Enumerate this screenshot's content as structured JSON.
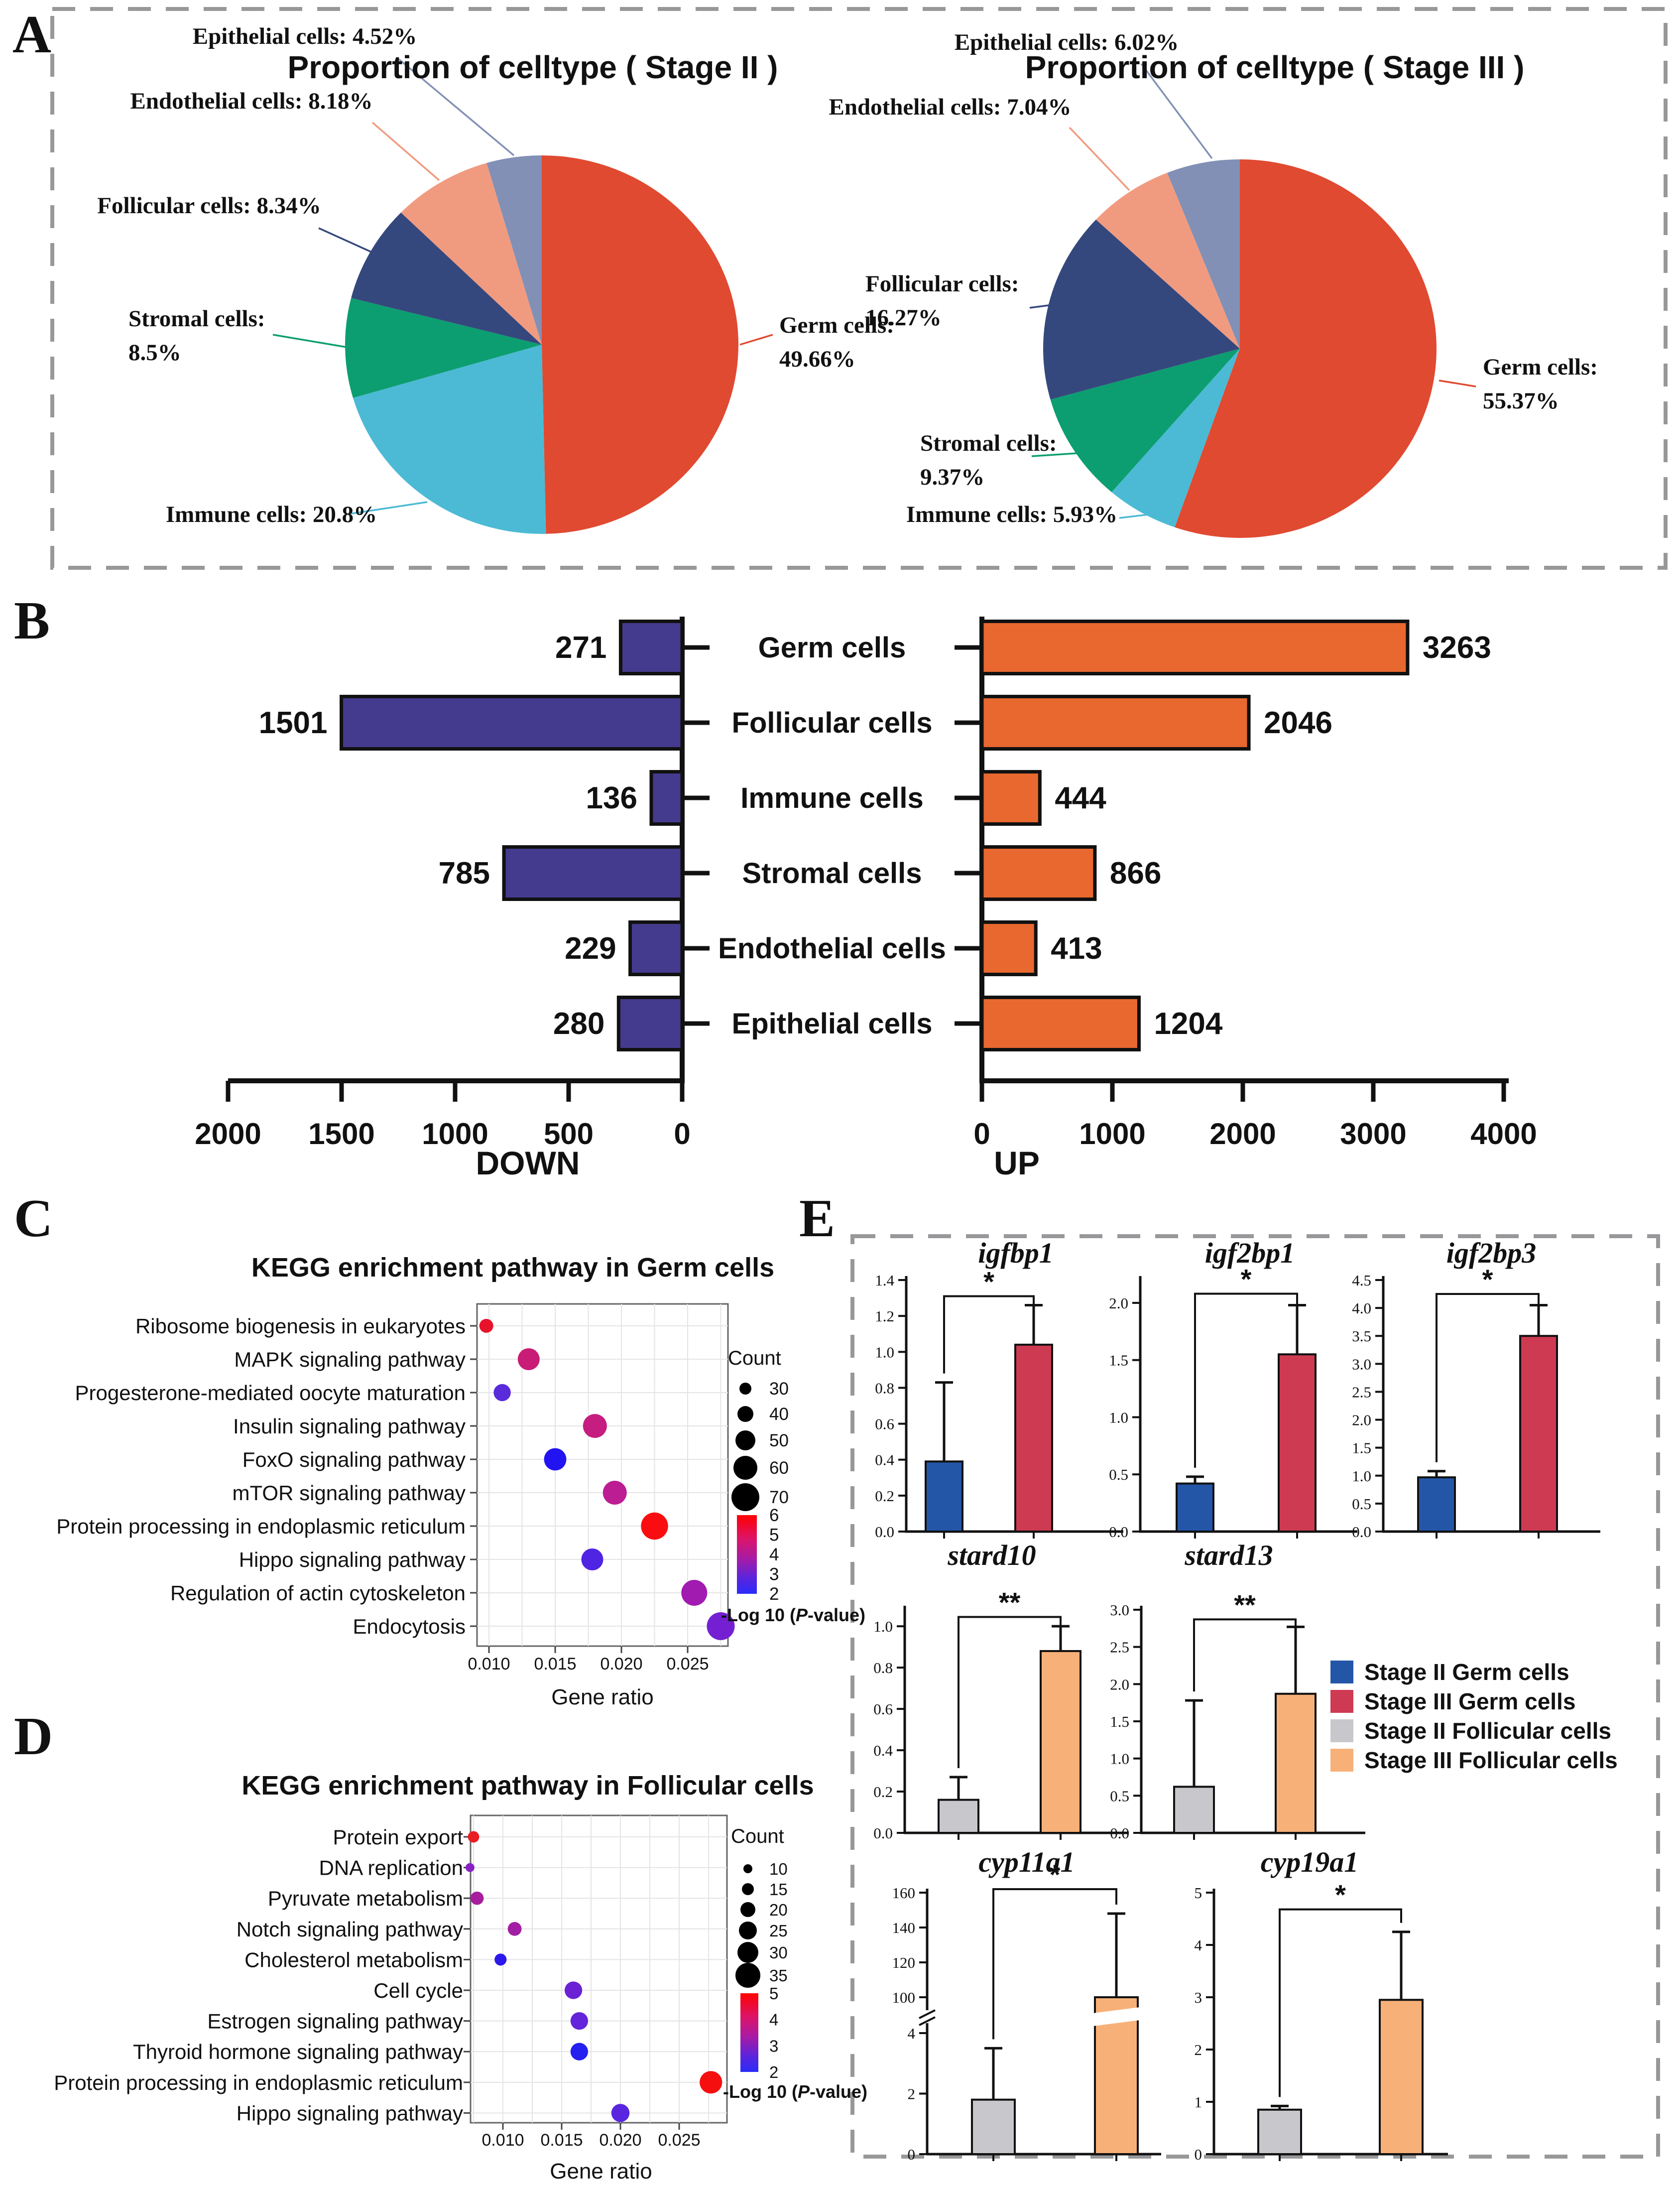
{
  "figure": {
    "panels": {
      "a": "A",
      "b": "B",
      "c": "C",
      "d": "D",
      "e": "E"
    }
  },
  "chart_data": [
    {
      "id": "celltype_stage2",
      "type": "pie",
      "title": "Proportion of celltype ( Stage II )",
      "slices": [
        {
          "label": "Germ cells",
          "value": 49.66,
          "color": "#E04A31"
        },
        {
          "label": "Immune cells",
          "value": 20.8,
          "color": "#4CBAD5"
        },
        {
          "label": "Stromal cells",
          "value": 8.5,
          "color": "#0C9E70"
        },
        {
          "label": "Follicular cells",
          "value": 8.34,
          "color": "#35487D"
        },
        {
          "label": "Endothelial cells",
          "value": 8.18,
          "color": "#F09B80"
        },
        {
          "label": "Epithelial cells",
          "value": 4.52,
          "color": "#8290B6"
        }
      ]
    },
    {
      "id": "celltype_stage3",
      "type": "pie",
      "title": "Proportion of celltype ( Stage III )",
      "slices": [
        {
          "label": "Germ cells",
          "value": 55.37,
          "color": "#E04A31"
        },
        {
          "label": "Immune cells",
          "value": 5.93,
          "color": "#4CBAD5"
        },
        {
          "label": "Stromal cells",
          "value": 9.37,
          "color": "#0C9E70"
        },
        {
          "label": "Follicular cells",
          "value": 16.27,
          "color": "#35487D"
        },
        {
          "label": "Endothelial cells",
          "value": 7.04,
          "color": "#F09B80"
        },
        {
          "label": "Epithelial cells",
          "value": 6.02,
          "color": "#8290B6"
        }
      ]
    },
    {
      "id": "deg_down",
      "type": "bar",
      "orientation": "horizontal-left",
      "axis_label": "DOWN",
      "color": "#443B8E",
      "categories": [
        "Germ cells",
        "Follicular cells",
        "Immune cells",
        "Stromal cells",
        "Endothelial cells",
        "Epithelial cells"
      ],
      "values": [
        271,
        1501,
        136,
        785,
        229,
        280
      ],
      "xticks": [
        2000,
        1500,
        1000,
        500,
        0
      ],
      "xlim": [
        0,
        2000
      ]
    },
    {
      "id": "deg_up",
      "type": "bar",
      "orientation": "horizontal-right",
      "axis_label": "UP",
      "color": "#E8682F",
      "categories": [
        "Germ cells",
        "Follicular cells",
        "Immune cells",
        "Stromal cells",
        "Endothelial cells",
        "Epithelial cells"
      ],
      "values": [
        3263,
        2046,
        444,
        866,
        413,
        1204
      ],
      "xticks": [
        0,
        1000,
        2000,
        3000,
        4000
      ],
      "xlim": [
        0,
        4000
      ]
    },
    {
      "id": "kegg_germ",
      "type": "scatter",
      "title": "KEGG enrichment pathway in Germ cells",
      "xlabel": "Gene ratio",
      "xtick_labels": [
        "0.010",
        "0.015",
        "0.020",
        "0.025"
      ],
      "points": [
        {
          "pathway": "Ribosome biogenesis in eukaryotes",
          "gene_ratio": 0.0098,
          "count": 25,
          "neg_log10_p": 6.0,
          "color": "#E8132B"
        },
        {
          "pathway": "MAPK signaling pathway",
          "gene_ratio": 0.013,
          "count": 45,
          "neg_log10_p": 4.6,
          "color": "#C91C76"
        },
        {
          "pathway": "Progesterone-mediated oocyte maturation",
          "gene_ratio": 0.011,
          "count": 33,
          "neg_log10_p": 2.6,
          "color": "#5A2BDB"
        },
        {
          "pathway": "Insulin signaling pathway",
          "gene_ratio": 0.018,
          "count": 50,
          "neg_log10_p": 4.5,
          "color": "#C51D80"
        },
        {
          "pathway": "FoxO signaling pathway",
          "gene_ratio": 0.015,
          "count": 46,
          "neg_log10_p": 2.0,
          "color": "#2214F2"
        },
        {
          "pathway": "mTOR signaling pathway",
          "gene_ratio": 0.0195,
          "count": 50,
          "neg_log10_p": 4.0,
          "color": "#BC1D92"
        },
        {
          "pathway": "Protein processing in endoplasmic reticulum",
          "gene_ratio": 0.0225,
          "count": 58,
          "neg_log10_p": 6.0,
          "color": "#FA0D10"
        },
        {
          "pathway": "Hippo signaling pathway",
          "gene_ratio": 0.0178,
          "count": 45,
          "neg_log10_p": 2.5,
          "color": "#4F24E2"
        },
        {
          "pathway": "Regulation of actin cytoskeleton",
          "gene_ratio": 0.0255,
          "count": 55,
          "neg_log10_p": 3.4,
          "color": "#A21BB0"
        },
        {
          "pathway": "Endocytosis",
          "gene_ratio": 0.0275,
          "count": 60,
          "neg_log10_p": 3.0,
          "color": "#7420D2"
        }
      ],
      "legend_count": {
        "title": "Count",
        "values": [
          30,
          40,
          50,
          60,
          70
        ]
      },
      "legend_color": {
        "title": "-Log 10 (P-value)",
        "ticks": [
          6,
          5,
          4,
          3,
          2
        ]
      }
    },
    {
      "id": "kegg_follicular",
      "type": "scatter",
      "title": "KEGG enrichment pathway in Follicular cells",
      "xlabel": "Gene ratio",
      "xtick_labels": [
        "0.010",
        "0.015",
        "0.020",
        "0.025"
      ],
      "points": [
        {
          "pathway": "Protein export",
          "gene_ratio": 0.0075,
          "count": 12,
          "neg_log10_p": 5.0,
          "color": "#EA1D25"
        },
        {
          "pathway": "DNA replication",
          "gene_ratio": 0.0072,
          "count": 8,
          "neg_log10_p": 3.2,
          "color": "#8820C4"
        },
        {
          "pathway": "Pyruvate metabolism",
          "gene_ratio": 0.0078,
          "count": 15,
          "neg_log10_p": 3.8,
          "color": "#A61E9C"
        },
        {
          "pathway": "Notch signaling pathway",
          "gene_ratio": 0.011,
          "count": 16,
          "neg_log10_p": 3.6,
          "color": "#A21FA4"
        },
        {
          "pathway": "Cholesterol metabolism",
          "gene_ratio": 0.0098,
          "count": 13,
          "neg_log10_p": 2.1,
          "color": "#2D18EC"
        },
        {
          "pathway": "Cell cycle",
          "gene_ratio": 0.016,
          "count": 22,
          "neg_log10_p": 2.8,
          "color": "#6B22D5"
        },
        {
          "pathway": "Estrogen signaling pathway",
          "gene_ratio": 0.0165,
          "count": 22,
          "neg_log10_p": 2.7,
          "color": "#6424DA"
        },
        {
          "pathway": "Thyroid hormone signaling pathway",
          "gene_ratio": 0.0165,
          "count": 22,
          "neg_log10_p": 1.9,
          "color": "#2420F0"
        },
        {
          "pathway": "Protein processing in endoplasmic reticulum",
          "gene_ratio": 0.0277,
          "count": 30,
          "neg_log10_p": 5.2,
          "color": "#F50F0F"
        },
        {
          "pathway": "Hippo signaling pathway",
          "gene_ratio": 0.02,
          "count": 23,
          "neg_log10_p": 2.5,
          "color": "#5A25DE"
        }
      ],
      "legend_count": {
        "title": "Count",
        "values": [
          10,
          15,
          20,
          25,
          30,
          35
        ]
      },
      "legend_color": {
        "title": "-Log 10 (P-value)",
        "ticks": [
          5,
          4,
          3,
          2
        ]
      }
    },
    {
      "id": "gene_expression",
      "type": "bar",
      "groups": [
        {
          "label": "Stage II Germ cells",
          "color": "#2456A8"
        },
        {
          "label": "Stage III Germ cells",
          "color": "#CE3A52"
        },
        {
          "label": "Stage II Follicular cells",
          "color": "#C8C8CC"
        },
        {
          "label": "Stage III Follicular cells",
          "color": "#F7B078"
        }
      ],
      "charts": [
        {
          "gene": "igfbp1",
          "significance": "*",
          "ymax": 1.4,
          "ytick_labels": [
            "0.0",
            "0.2",
            "0.4",
            "0.6",
            "0.8",
            "1.0",
            "1.2",
            "1.4"
          ],
          "bars": [
            {
              "group": 0,
              "value": 0.39,
              "error_top": 0.83
            },
            {
              "group": 1,
              "value": 1.04,
              "error_top": 1.26
            }
          ],
          "sig_y": 1.31
        },
        {
          "gene": "igf2bp1",
          "significance": "*",
          "ymax": 2.2,
          "ytick_labels": [
            "0.0",
            "0.5",
            "1.0",
            "1.5",
            "2.0"
          ],
          "bars": [
            {
              "group": 0,
              "value": 0.42,
              "error_top": 0.48
            },
            {
              "group": 1,
              "value": 1.55,
              "error_top": 1.98
            }
          ],
          "sig_y": 2.08
        },
        {
          "gene": "igf2bp3",
          "significance": "*",
          "ymax": 4.5,
          "ytick_labels": [
            "0.0",
            "0.5",
            "1.0",
            "1.5",
            "2.0",
            "2.5",
            "3.0",
            "3.5",
            "4.0",
            "4.5"
          ],
          "bars": [
            {
              "group": 0,
              "value": 0.97,
              "error_top": 1.08
            },
            {
              "group": 1,
              "value": 3.5,
              "error_top": 4.05
            }
          ],
          "sig_y": 4.25
        },
        {
          "gene": "stard10",
          "significance": "**",
          "ymax": 1.08,
          "ytick_labels": [
            "0.0",
            "0.2",
            "0.4",
            "0.6",
            "0.8",
            "1.0"
          ],
          "bars": [
            {
              "group": 2,
              "value": 0.16,
              "error_top": 0.27
            },
            {
              "group": 3,
              "value": 0.88,
              "error_top": 1.0
            }
          ],
          "sig_y": 1.045
        },
        {
          "gene": "stard13",
          "significance": "**",
          "ymax": 3.0,
          "ytick_labels": [
            "0.0",
            "0.5",
            "1.0",
            "1.5",
            "2.0",
            "2.5",
            "3.0"
          ],
          "bars": [
            {
              "group": 2,
              "value": 0.62,
              "error_top": 1.78
            },
            {
              "group": 3,
              "value": 1.87,
              "error_top": 2.77
            }
          ],
          "sig_y": 2.87
        },
        {
          "gene": "cyp11a1",
          "significance": "*",
          "broken_axis": true,
          "lower_tick_labels": [
            "0",
            "2",
            "4"
          ],
          "upper_tick_labels": [
            "100",
            "120",
            "140",
            "160"
          ],
          "bars": [
            {
              "group": 2,
              "value": 1.8,
              "error_top": 3.5
            },
            {
              "group": 3,
              "value": 100,
              "error_top": 148
            }
          ]
        },
        {
          "gene": "cyp19a1",
          "significance": "*",
          "ymax": 5,
          "ytick_labels": [
            "0",
            "1",
            "2",
            "3",
            "4",
            "5"
          ],
          "bars": [
            {
              "group": 2,
              "value": 0.85,
              "error_top": 0.92
            },
            {
              "group": 3,
              "value": 2.95,
              "error_top": 4.25
            }
          ],
          "sig_y": 4.68
        }
      ]
    }
  ]
}
